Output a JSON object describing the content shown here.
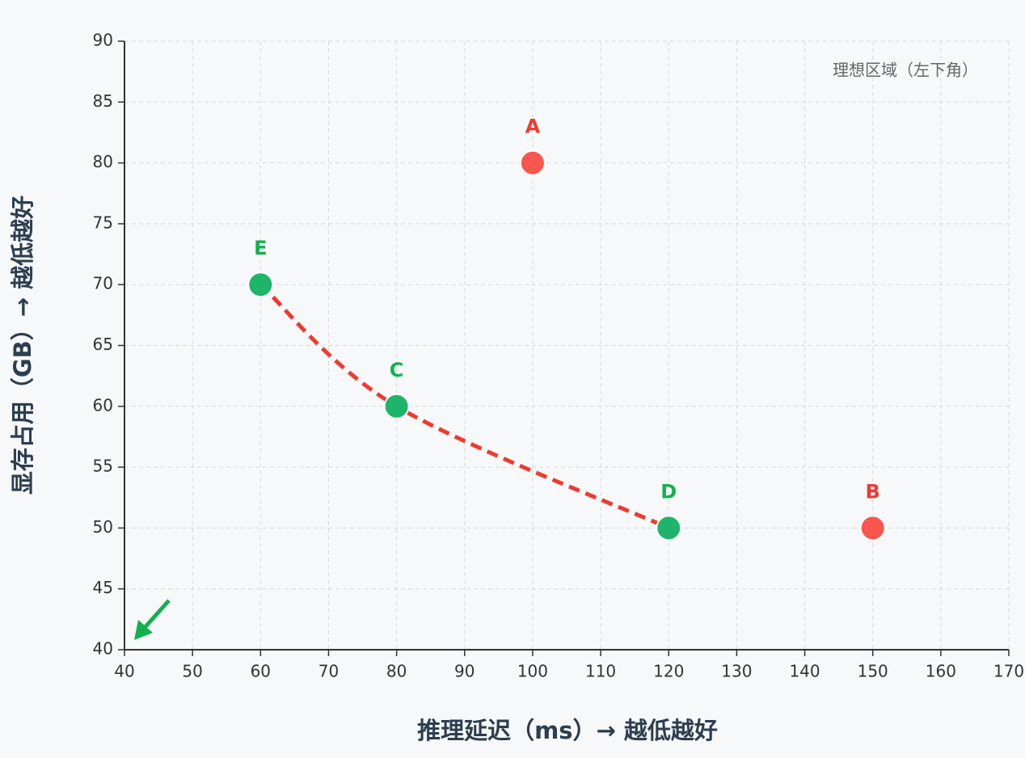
{
  "chart_data": {
    "type": "scatter",
    "xlabel": "推理延迟（ms）→ 越低越好",
    "ylabel": "显存占用（GB）→ 越低越好",
    "annotation": "理想区域（左下角）",
    "xlim": [
      40,
      170
    ],
    "xticks": [
      40,
      50,
      60,
      70,
      80,
      90,
      100,
      110,
      120,
      130,
      140,
      150,
      160,
      170
    ],
    "ylim": [
      40,
      90
    ],
    "yticks": [
      40,
      45,
      50,
      55,
      60,
      65,
      70,
      75,
      80,
      85,
      90
    ],
    "grid": true,
    "x": [
      100,
      150,
      80,
      120,
      60
    ],
    "values": [
      80,
      50,
      60,
      50,
      70
    ],
    "point_labels": [
      "A",
      "B",
      "C",
      "D",
      "E"
    ],
    "colors": [
      "#f8564e",
      "#f8564e",
      "#1fb46b",
      "#1fb46b",
      "#1fb46b"
    ],
    "label_colors": [
      "#ef3a30",
      "#ef3a30",
      "#14b04f",
      "#14b04f",
      "#14b04f"
    ],
    "frontier": {
      "x": [
        60,
        80,
        120
      ],
      "values": [
        70,
        60,
        50
      ],
      "color": "#ef3a30"
    }
  }
}
